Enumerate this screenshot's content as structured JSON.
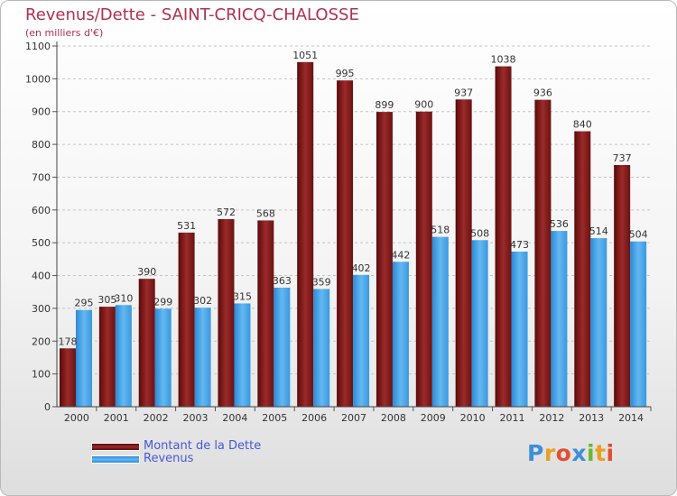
{
  "chart_data": {
    "type": "bar",
    "title": "Revenus/Dette - SAINT-CRICQ-CHALOSSE",
    "subtitle": "(en milliers d'€)",
    "categories": [
      "2000",
      "2001",
      "2002",
      "2003",
      "2004",
      "2005",
      "2006",
      "2007",
      "2008",
      "2009",
      "2010",
      "2011",
      "2012",
      "2013",
      "2014"
    ],
    "series": [
      {
        "name": "Montant de la Dette",
        "values": [
          178,
          305,
          390,
          531,
          572,
          568,
          1051,
          995,
          899,
          900,
          937,
          1038,
          936,
          840,
          737
        ],
        "color": "#8b1c1c"
      },
      {
        "name": "Revenus",
        "values": [
          295,
          310,
          299,
          302,
          315,
          363,
          359,
          402,
          442,
          518,
          508,
          473,
          536,
          514,
          504
        ],
        "color": "#4aa8e8"
      }
    ],
    "ylim": [
      0,
      1100
    ],
    "yticks": [
      0,
      100,
      200,
      300,
      400,
      500,
      600,
      700,
      800,
      900,
      1000,
      1100
    ],
    "grid": true,
    "legend": "bottom-left"
  },
  "branding": {
    "logo_text": "Proxiti"
  }
}
